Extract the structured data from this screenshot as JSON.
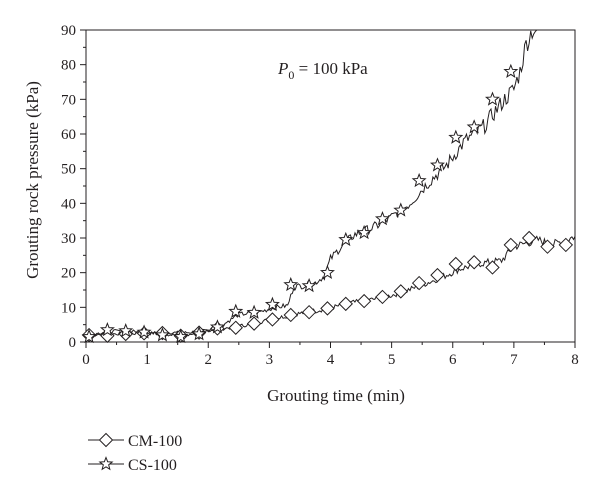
{
  "chart_data": {
    "type": "line",
    "xlabel": "Grouting time (min)",
    "ylabel": "Grouting rock pressure (kPa)",
    "xlim": [
      0,
      8
    ],
    "ylim": [
      0,
      90
    ],
    "x_ticks": [
      "0",
      "1",
      "2",
      "3",
      "4",
      "5",
      "6",
      "7",
      "8"
    ],
    "y_ticks": [
      "0",
      "10",
      "20",
      "30",
      "40",
      "50",
      "60",
      "70",
      "80",
      "90"
    ],
    "grid": false,
    "legend_position": "bottom-left, below plot",
    "annotation": {
      "main": "P",
      "sub": "0",
      "rest": " = 100 kPa"
    },
    "series": [
      {
        "name": "CM-100",
        "marker": "diamond",
        "x": [
          0,
          0.3,
          0.6,
          1.0,
          1.3,
          1.6,
          1.9,
          2.2,
          2.5,
          2.8,
          3.1,
          3.4,
          3.7,
          4.0,
          4.3,
          4.6,
          4.9,
          5.2,
          5.5,
          5.8,
          6.1,
          6.4,
          6.6,
          6.8,
          7.0,
          7.2,
          7.4,
          7.6,
          7.8,
          8.0
        ],
        "y": [
          2,
          2.2,
          2.5,
          2.4,
          2.8,
          2.6,
          3.2,
          3.8,
          4.5,
          5.6,
          6.8,
          8.0,
          8.8,
          9.8,
          11.2,
          12.0,
          13.0,
          14.5,
          16.5,
          18.5,
          21.0,
          22.5,
          23.0,
          23.5,
          27.5,
          28.5,
          29.5,
          28.0,
          29.0,
          30.5
        ],
        "marker_x": [
          0.05,
          0.35,
          0.65,
          0.95,
          1.25,
          1.55,
          1.85,
          2.15,
          2.45,
          2.75,
          3.05,
          3.35,
          3.65,
          3.95,
          4.25,
          4.55,
          4.85,
          5.15,
          5.45,
          5.75,
          6.05,
          6.35,
          6.65,
          6.95,
          7.25,
          7.55,
          7.85
        ],
        "marker_y": [
          2,
          1.8,
          2.3,
          2.5,
          2.6,
          1.8,
          2.7,
          3.9,
          4.1,
          5.3,
          6.5,
          7.8,
          8.6,
          9.7,
          11.0,
          11.8,
          13.0,
          14.6,
          17.0,
          19.3,
          22.5,
          23.0,
          21.5,
          28.0,
          30.0,
          27.5,
          28.0
        ]
      },
      {
        "name": "CS-100",
        "marker": "star",
        "x": [
          0,
          0.3,
          0.6,
          1.0,
          1.3,
          1.6,
          1.9,
          2.2,
          2.5,
          2.8,
          3.1,
          3.3,
          3.4,
          3.7,
          3.9,
          4.0,
          4.2,
          4.4,
          4.7,
          5.0,
          5.3,
          5.6,
          5.9,
          6.2,
          6.5,
          6.8,
          7.0,
          7.1,
          7.2,
          7.3,
          7.4
        ],
        "y": [
          1.5,
          3.0,
          3.2,
          2.8,
          2.2,
          1.8,
          2.8,
          4.5,
          8.0,
          8.5,
          10.0,
          10.5,
          16.0,
          16.5,
          19.0,
          24.0,
          28.0,
          31.0,
          33.0,
          36.0,
          40.0,
          46.0,
          51.0,
          58.0,
          62.0,
          69.0,
          73.0,
          78.0,
          86.0,
          90.0,
          90.0
        ],
        "marker_x": [
          0.05,
          0.35,
          0.65,
          0.95,
          1.25,
          1.55,
          1.85,
          2.15,
          2.45,
          2.75,
          3.05,
          3.35,
          3.65,
          3.95,
          4.25,
          4.55,
          4.85,
          5.15,
          5.45,
          5.75,
          6.05,
          6.35,
          6.65,
          6.95
        ],
        "marker_y": [
          1.5,
          3.5,
          3.2,
          2.8,
          2.0,
          1.5,
          2.3,
          4.3,
          8.8,
          8.5,
          10.8,
          16.5,
          16.2,
          20.0,
          29.5,
          31.5,
          35.5,
          38.0,
          46.5,
          51.0,
          59.0,
          62.0,
          70.0,
          78.0
        ]
      }
    ]
  }
}
